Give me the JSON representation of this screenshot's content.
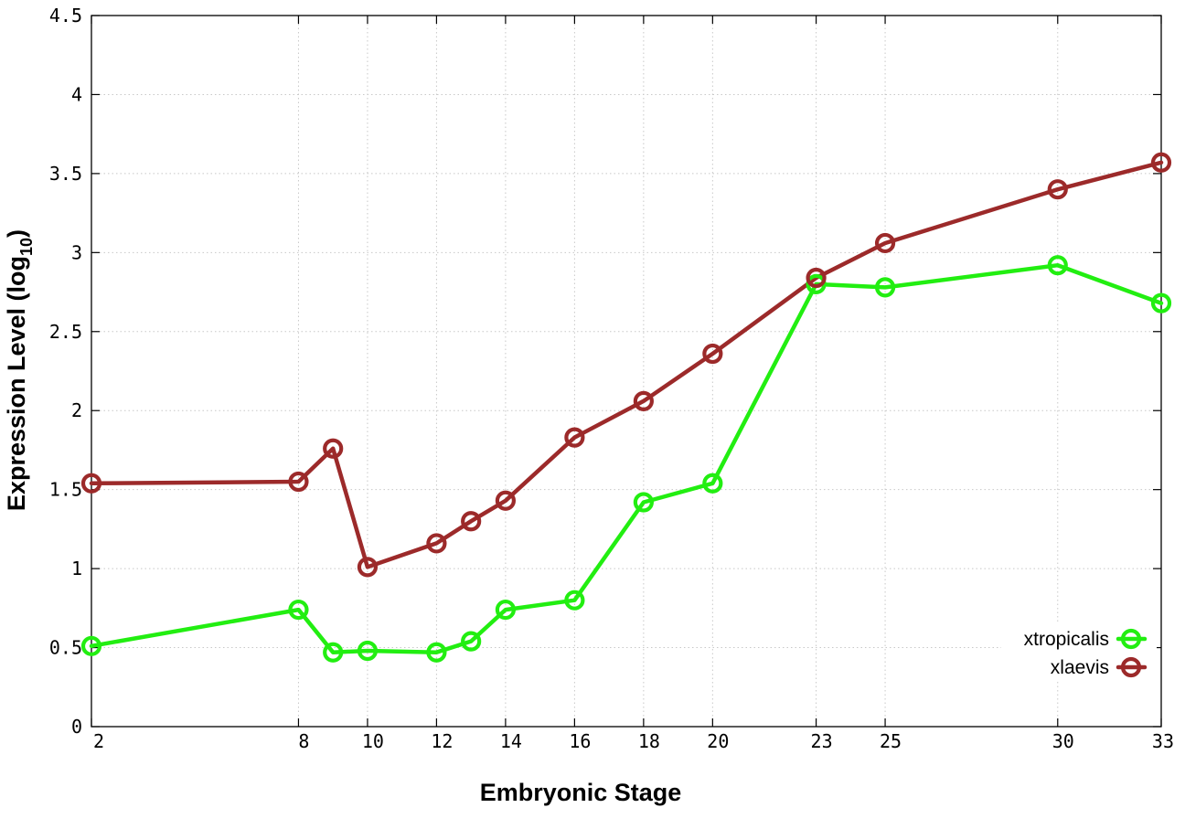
{
  "chart_data": {
    "type": "line",
    "xlabel": "Embryonic Stage",
    "ylabel_main": "Expression Level (log",
    "ylabel_sub": "10",
    "ylabel_close": ")",
    "xlim": [
      2,
      33
    ],
    "ylim": [
      0,
      4.5
    ],
    "x_ticks": [
      2,
      8,
      10,
      12,
      14,
      16,
      18,
      20,
      23,
      25,
      30,
      33
    ],
    "y_ticks": [
      0,
      0.5,
      1,
      1.5,
      2,
      2.5,
      3,
      3.5,
      4,
      4.5
    ],
    "y_tick_labels": [
      "0",
      "0.5",
      "1",
      "1.5",
      "2",
      "2.5",
      "3",
      "3.5",
      "4",
      "4.5"
    ],
    "grid": true,
    "legend_position": "bottom-right",
    "series": [
      {
        "name": "xtropicalis",
        "color": "#22ee11",
        "x": [
          2,
          8,
          9,
          10,
          12,
          13,
          14,
          16,
          18,
          20,
          23,
          25,
          30,
          33
        ],
        "y": [
          0.51,
          0.74,
          0.47,
          0.48,
          0.47,
          0.54,
          0.74,
          0.8,
          1.42,
          1.54,
          2.8,
          2.78,
          2.92,
          2.68
        ]
      },
      {
        "name": "xlaevis",
        "color": "#9c2a2a",
        "x": [
          2,
          8,
          9,
          10,
          12,
          13,
          14,
          16,
          18,
          20,
          23,
          25,
          30,
          33
        ],
        "y": [
          1.54,
          1.55,
          1.76,
          1.01,
          1.16,
          1.3,
          1.43,
          1.83,
          2.06,
          2.36,
          2.84,
          3.06,
          3.4,
          3.57
        ]
      }
    ]
  }
}
